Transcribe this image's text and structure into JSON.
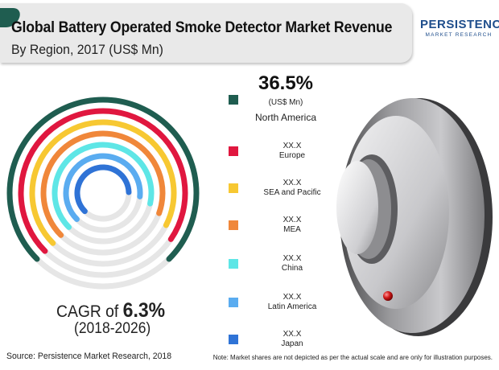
{
  "header": {
    "title": "Global Battery Operated Smoke Detector Market Revenue",
    "subtitle": "By Region, 2017 (US$ Mn)"
  },
  "logo": {
    "top": "PERSISTENCE",
    "bottom": "MARKET RESEARCH"
  },
  "chart_data": {
    "type": "radial-bar",
    "title": "Global Battery Operated Smoke Detector Market Revenue",
    "subtitle": "By Region, 2017 (US$ Mn)",
    "series": [
      {
        "name": "North America",
        "label": "36.5%",
        "unit": "(US$ Mn)",
        "value": 36.5,
        "color": "#1f5d50"
      },
      {
        "name": "Europe",
        "label": "XX.X",
        "value": null,
        "color": "#e0173f"
      },
      {
        "name": "SEA and Pacific",
        "label": "XX.X",
        "value": null,
        "color": "#f7c832"
      },
      {
        "name": "MEA",
        "label": "XX.X",
        "value": null,
        "color": "#f0873a"
      },
      {
        "name": "China",
        "label": "XX.X",
        "value": null,
        "color": "#5ee6e6"
      },
      {
        "name": "Latin America",
        "label": "XX.X",
        "value": null,
        "color": "#5aacf0"
      },
      {
        "name": "Japan",
        "label": "XX.X",
        "value": null,
        "color": "#2f73d6"
      }
    ],
    "illustrative_fractions": [
      0.75,
      0.72,
      0.7,
      0.68,
      0.66,
      0.64,
      0.62
    ],
    "legend_position": "right",
    "track_color": "#e6e6e6"
  },
  "cagr": {
    "prefix": "CAGR of ",
    "value": "6.3%",
    "period": "(2018-2026)"
  },
  "footer": {
    "source": "Source: Persistence Market Research, 2018",
    "note": "Note: Market shares are not depicted as per the actual scale and are only for illustration purposes."
  }
}
